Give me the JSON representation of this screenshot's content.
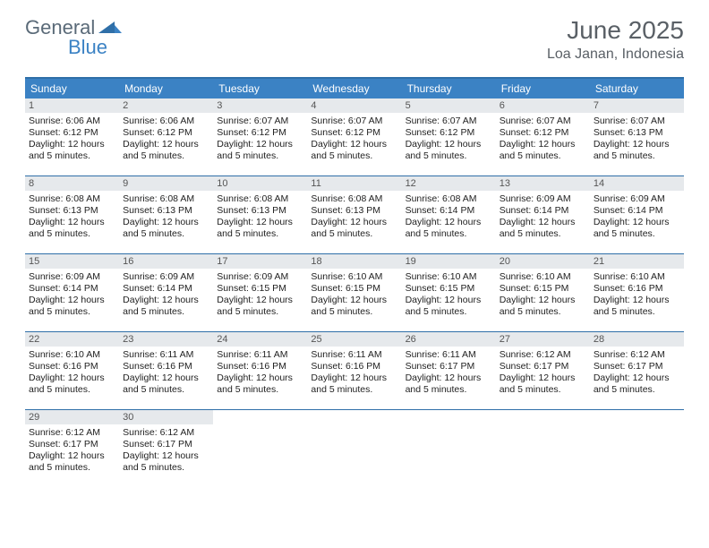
{
  "brand": {
    "word1": "General",
    "word2": "Blue"
  },
  "title": "June 2025",
  "location": "Loa Janan, Indonesia",
  "colors": {
    "header_bg": "#3b82c4",
    "border": "#2f6fa8",
    "daynum_bg": "#e6e9ec",
    "text": "#333333"
  },
  "weekdays": [
    "Sunday",
    "Monday",
    "Tuesday",
    "Wednesday",
    "Thursday",
    "Friday",
    "Saturday"
  ],
  "weeks": [
    [
      {
        "n": "1",
        "sunrise": "Sunrise: 6:06 AM",
        "sunset": "Sunset: 6:12 PM",
        "daylight": "Daylight: 12 hours and 5 minutes."
      },
      {
        "n": "2",
        "sunrise": "Sunrise: 6:06 AM",
        "sunset": "Sunset: 6:12 PM",
        "daylight": "Daylight: 12 hours and 5 minutes."
      },
      {
        "n": "3",
        "sunrise": "Sunrise: 6:07 AM",
        "sunset": "Sunset: 6:12 PM",
        "daylight": "Daylight: 12 hours and 5 minutes."
      },
      {
        "n": "4",
        "sunrise": "Sunrise: 6:07 AM",
        "sunset": "Sunset: 6:12 PM",
        "daylight": "Daylight: 12 hours and 5 minutes."
      },
      {
        "n": "5",
        "sunrise": "Sunrise: 6:07 AM",
        "sunset": "Sunset: 6:12 PM",
        "daylight": "Daylight: 12 hours and 5 minutes."
      },
      {
        "n": "6",
        "sunrise": "Sunrise: 6:07 AM",
        "sunset": "Sunset: 6:12 PM",
        "daylight": "Daylight: 12 hours and 5 minutes."
      },
      {
        "n": "7",
        "sunrise": "Sunrise: 6:07 AM",
        "sunset": "Sunset: 6:13 PM",
        "daylight": "Daylight: 12 hours and 5 minutes."
      }
    ],
    [
      {
        "n": "8",
        "sunrise": "Sunrise: 6:08 AM",
        "sunset": "Sunset: 6:13 PM",
        "daylight": "Daylight: 12 hours and 5 minutes."
      },
      {
        "n": "9",
        "sunrise": "Sunrise: 6:08 AM",
        "sunset": "Sunset: 6:13 PM",
        "daylight": "Daylight: 12 hours and 5 minutes."
      },
      {
        "n": "10",
        "sunrise": "Sunrise: 6:08 AM",
        "sunset": "Sunset: 6:13 PM",
        "daylight": "Daylight: 12 hours and 5 minutes."
      },
      {
        "n": "11",
        "sunrise": "Sunrise: 6:08 AM",
        "sunset": "Sunset: 6:13 PM",
        "daylight": "Daylight: 12 hours and 5 minutes."
      },
      {
        "n": "12",
        "sunrise": "Sunrise: 6:08 AM",
        "sunset": "Sunset: 6:14 PM",
        "daylight": "Daylight: 12 hours and 5 minutes."
      },
      {
        "n": "13",
        "sunrise": "Sunrise: 6:09 AM",
        "sunset": "Sunset: 6:14 PM",
        "daylight": "Daylight: 12 hours and 5 minutes."
      },
      {
        "n": "14",
        "sunrise": "Sunrise: 6:09 AM",
        "sunset": "Sunset: 6:14 PM",
        "daylight": "Daylight: 12 hours and 5 minutes."
      }
    ],
    [
      {
        "n": "15",
        "sunrise": "Sunrise: 6:09 AM",
        "sunset": "Sunset: 6:14 PM",
        "daylight": "Daylight: 12 hours and 5 minutes."
      },
      {
        "n": "16",
        "sunrise": "Sunrise: 6:09 AM",
        "sunset": "Sunset: 6:14 PM",
        "daylight": "Daylight: 12 hours and 5 minutes."
      },
      {
        "n": "17",
        "sunrise": "Sunrise: 6:09 AM",
        "sunset": "Sunset: 6:15 PM",
        "daylight": "Daylight: 12 hours and 5 minutes."
      },
      {
        "n": "18",
        "sunrise": "Sunrise: 6:10 AM",
        "sunset": "Sunset: 6:15 PM",
        "daylight": "Daylight: 12 hours and 5 minutes."
      },
      {
        "n": "19",
        "sunrise": "Sunrise: 6:10 AM",
        "sunset": "Sunset: 6:15 PM",
        "daylight": "Daylight: 12 hours and 5 minutes."
      },
      {
        "n": "20",
        "sunrise": "Sunrise: 6:10 AM",
        "sunset": "Sunset: 6:15 PM",
        "daylight": "Daylight: 12 hours and 5 minutes."
      },
      {
        "n": "21",
        "sunrise": "Sunrise: 6:10 AM",
        "sunset": "Sunset: 6:16 PM",
        "daylight": "Daylight: 12 hours and 5 minutes."
      }
    ],
    [
      {
        "n": "22",
        "sunrise": "Sunrise: 6:10 AM",
        "sunset": "Sunset: 6:16 PM",
        "daylight": "Daylight: 12 hours and 5 minutes."
      },
      {
        "n": "23",
        "sunrise": "Sunrise: 6:11 AM",
        "sunset": "Sunset: 6:16 PM",
        "daylight": "Daylight: 12 hours and 5 minutes."
      },
      {
        "n": "24",
        "sunrise": "Sunrise: 6:11 AM",
        "sunset": "Sunset: 6:16 PM",
        "daylight": "Daylight: 12 hours and 5 minutes."
      },
      {
        "n": "25",
        "sunrise": "Sunrise: 6:11 AM",
        "sunset": "Sunset: 6:16 PM",
        "daylight": "Daylight: 12 hours and 5 minutes."
      },
      {
        "n": "26",
        "sunrise": "Sunrise: 6:11 AM",
        "sunset": "Sunset: 6:17 PM",
        "daylight": "Daylight: 12 hours and 5 minutes."
      },
      {
        "n": "27",
        "sunrise": "Sunrise: 6:12 AM",
        "sunset": "Sunset: 6:17 PM",
        "daylight": "Daylight: 12 hours and 5 minutes."
      },
      {
        "n": "28",
        "sunrise": "Sunrise: 6:12 AM",
        "sunset": "Sunset: 6:17 PM",
        "daylight": "Daylight: 12 hours and 5 minutes."
      }
    ],
    [
      {
        "n": "29",
        "sunrise": "Sunrise: 6:12 AM",
        "sunset": "Sunset: 6:17 PM",
        "daylight": "Daylight: 12 hours and 5 minutes."
      },
      {
        "n": "30",
        "sunrise": "Sunrise: 6:12 AM",
        "sunset": "Sunset: 6:17 PM",
        "daylight": "Daylight: 12 hours and 5 minutes."
      },
      null,
      null,
      null,
      null,
      null
    ]
  ]
}
